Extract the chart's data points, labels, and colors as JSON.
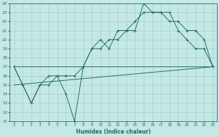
{
  "xlabel": "Humidex (Indice chaleur)",
  "bg_color": "#c5e8e5",
  "grid_color": "#9fcfcc",
  "line_color": "#1e6b65",
  "xlim": [
    -0.5,
    23.5
  ],
  "ylim": [
    11,
    24
  ],
  "xticks": [
    0,
    1,
    2,
    3,
    4,
    5,
    6,
    7,
    8,
    9,
    10,
    11,
    12,
    13,
    14,
    15,
    16,
    17,
    18,
    19,
    20,
    21,
    22,
    23
  ],
  "yticks": [
    11,
    12,
    13,
    14,
    15,
    16,
    17,
    18,
    19,
    20,
    21,
    22,
    23,
    24
  ],
  "line1_x": [
    0,
    1,
    2,
    3,
    4,
    5,
    6,
    7,
    8,
    9,
    10,
    11,
    12,
    13,
    14,
    15,
    16,
    17,
    18,
    19,
    20,
    21,
    22,
    23
  ],
  "line1_y": [
    17,
    15,
    13,
    15,
    16,
    16,
    14,
    11,
    17,
    19,
    20,
    19,
    21,
    21,
    21,
    24,
    23,
    23,
    23,
    21,
    20,
    19,
    19,
    17
  ],
  "line2_x": [
    0,
    1,
    2,
    3,
    4,
    5,
    6,
    7,
    8,
    9,
    10,
    11,
    12,
    13,
    14,
    15,
    16,
    17,
    18,
    19,
    20,
    21,
    22,
    23
  ],
  "line2_y": [
    17,
    15,
    13,
    15,
    15,
    16,
    16,
    16,
    17,
    19,
    19,
    20,
    20,
    21,
    22,
    23,
    23,
    23,
    22,
    22,
    21,
    21,
    20,
    17
  ],
  "line3_x": [
    0,
    23
  ],
  "line3_y": [
    15,
    17
  ],
  "line4_x": [
    0,
    23
  ],
  "line4_y": [
    17,
    17
  ]
}
